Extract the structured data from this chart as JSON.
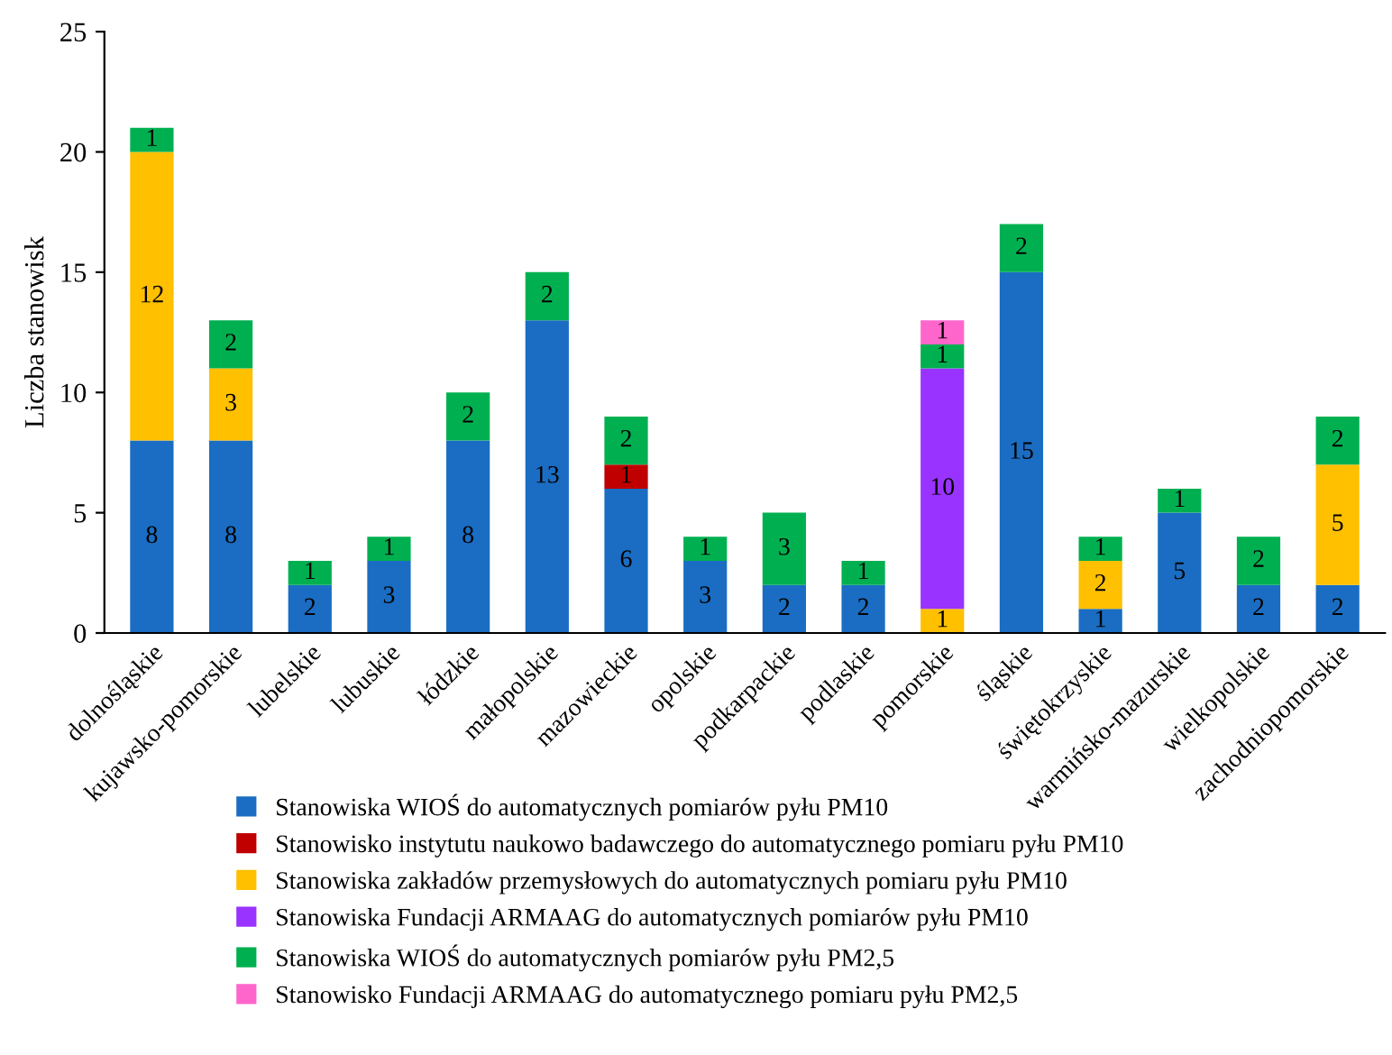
{
  "chart_data": {
    "type": "bar",
    "stacked": true,
    "ylabel": "Liczba stanowisk",
    "categories": [
      "dolnośląskie",
      "kujawsko-pomorskie",
      "lubelskie",
      "lubuskie",
      "łódzkie",
      "małopolskie",
      "mazowieckie",
      "opolskie",
      "podkarpackie",
      "podlaskie",
      "pomorskie",
      "śląskie",
      "świętokrzyskie",
      "warmińsko-mazurskie",
      "wielkopolskie",
      "zachodniopomorskie"
    ],
    "series": [
      {
        "name": "Stanowiska WIOŚ do automatycznych pomiarów pyłu PM10",
        "color": "#1a6dc2",
        "values": [
          8,
          8,
          2,
          3,
          8,
          13,
          6,
          3,
          2,
          2,
          null,
          15,
          1,
          5,
          2,
          2
        ]
      },
      {
        "name": "Stanowisko instytutu naukowo badawczego do automatycznego pomiaru pyłu PM10",
        "color": "#c00000",
        "values": [
          null,
          null,
          null,
          null,
          null,
          null,
          1,
          null,
          null,
          null,
          null,
          null,
          null,
          null,
          null,
          null
        ]
      },
      {
        "name": "Stanowiska zakładów przemysłowych do automatycznych pomiaru pyłu PM10",
        "color": "#ffc000",
        "values": [
          12,
          3,
          null,
          null,
          null,
          null,
          null,
          null,
          null,
          null,
          1,
          null,
          2,
          null,
          null,
          5
        ]
      },
      {
        "name": "Stanowiska Fundacji ARMAAG do automatycznych pomiarów pyłu PM10",
        "color": "#9933ff",
        "values": [
          null,
          null,
          null,
          null,
          null,
          null,
          null,
          null,
          null,
          null,
          10,
          null,
          null,
          null,
          null,
          null
        ]
      },
      {
        "name": "Stanowiska WIOŚ do automatycznych pomiarów pyłu PM2,5",
        "color": "#00b050",
        "values": [
          1,
          2,
          1,
          1,
          2,
          2,
          2,
          1,
          3,
          1,
          1,
          2,
          1,
          1,
          2,
          2
        ]
      },
      {
        "name": "Stanowisko Fundacji ARMAAG do automatycznego pomiaru pyłu PM2,5",
        "color": "#ff66cc",
        "values": [
          null,
          null,
          null,
          null,
          null,
          null,
          null,
          null,
          null,
          null,
          1,
          null,
          null,
          null,
          null,
          null
        ]
      }
    ],
    "ylim": [
      0,
      25
    ],
    "yticks": [
      0,
      5,
      10,
      15,
      20,
      25
    ],
    "data_labels": true,
    "legend": "bottom",
    "grid": false
  }
}
